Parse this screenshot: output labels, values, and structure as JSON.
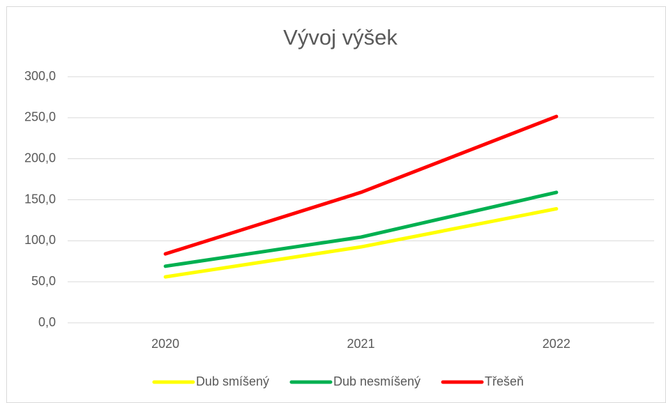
{
  "chart_data": {
    "type": "line",
    "title": "Vývoj výšek",
    "categories": [
      "2020",
      "2021",
      "2022"
    ],
    "series": [
      {
        "name": "Dub smíšený",
        "color": "#ffff00",
        "values": [
          56,
          92.5,
          139
        ]
      },
      {
        "name": "Dub nesmíšený",
        "color": "#00b050",
        "values": [
          69,
          104.5,
          159
        ]
      },
      {
        "name": "Třešeň",
        "color": "#ff0000",
        "values": [
          84,
          159,
          251.5
        ]
      }
    ],
    "ylim": [
      0,
      300
    ],
    "yticks": [
      {
        "value": 0,
        "label": "0,0"
      },
      {
        "value": 50,
        "label": "50,0"
      },
      {
        "value": 100,
        "label": "100,0"
      },
      {
        "value": 150,
        "label": "150,0"
      },
      {
        "value": 200,
        "label": "200,0"
      },
      {
        "value": 250,
        "label": "250,0"
      },
      {
        "value": 300,
        "label": "300,0"
      }
    ],
    "grid": true,
    "legend": "bottom"
  }
}
